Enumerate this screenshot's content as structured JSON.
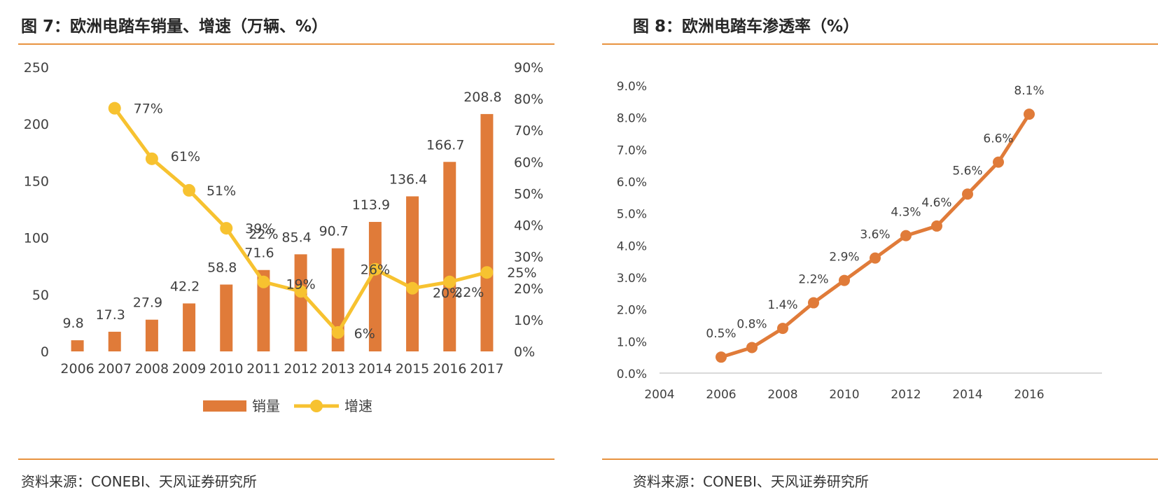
{
  "colors": {
    "bar": "#e07b39",
    "growth_line": "#f7c230",
    "penetration_line": "#e07b39",
    "rule": "#e8933f",
    "text": "#404040"
  },
  "left_panel": {
    "title": "图 7：欧洲电踏车销量、增速（万辆、%）",
    "source": "资料来源：CONEBI、天风证券研究所"
  },
  "right_panel": {
    "title": "图 8：欧洲电踏车渗透率（%）",
    "source": "资料来源：CONEBI、天风证券研究所"
  },
  "chart_data": [
    {
      "type": "bar",
      "categories": [
        "2006",
        "2007",
        "2008",
        "2009",
        "2010",
        "2011",
        "2012",
        "2013",
        "2014",
        "2015",
        "2016",
        "2017"
      ],
      "series": [
        {
          "name": "销量",
          "type": "bar",
          "axis": "left",
          "values": [
            9.8,
            17.3,
            27.9,
            42.2,
            58.8,
            71.6,
            85.4,
            90.7,
            113.9,
            136.4,
            166.7,
            208.8
          ],
          "labels": [
            "9.8",
            "17.3",
            "27.9",
            "42.2",
            "58.8",
            "71.6",
            "85.4",
            "90.7",
            "113.9",
            "136.4",
            "166.7",
            "208.8"
          ]
        },
        {
          "name": "增速",
          "type": "line",
          "axis": "right",
          "values": [
            null,
            77,
            61,
            51,
            39,
            22,
            19,
            6,
            26,
            20,
            22,
            25
          ],
          "labels": [
            "",
            "77%",
            "61%",
            "51%",
            "39%",
            "22%",
            "19%",
            "6%",
            "26%",
            "20%",
            "22%",
            "25%"
          ]
        }
      ],
      "ylim_left": [
        0,
        250
      ],
      "yticks_left": [
        "0",
        "50",
        "100",
        "150",
        "200",
        "250"
      ],
      "ylim_right": [
        0,
        90
      ],
      "yticks_right": [
        "0%",
        "10%",
        "20%",
        "30%",
        "40%",
        "50%",
        "60%",
        "70%",
        "80%",
        "90%"
      ],
      "legend": [
        "销量",
        "增速"
      ],
      "legend_position": "bottom",
      "grid": false
    },
    {
      "type": "line",
      "series": [
        {
          "name": "渗透率",
          "x": [
            2006,
            2007,
            2008,
            2009,
            2010,
            2011,
            2012,
            2013,
            2014,
            2015,
            2016
          ],
          "values": [
            0.5,
            0.8,
            1.4,
            2.2,
            2.9,
            3.6,
            4.3,
            4.6,
            5.6,
            6.6,
            8.1
          ],
          "labels": [
            "0.5%",
            "0.8%",
            "1.4%",
            "2.2%",
            "2.9%",
            "3.6%",
            "4.3%",
            "4.6%",
            "5.6%",
            "6.6%",
            "8.1%"
          ]
        }
      ],
      "xlim": [
        2004,
        2017
      ],
      "xticks": [
        "2004",
        "2006",
        "2008",
        "2010",
        "2012",
        "2014",
        "2016"
      ],
      "ylim": [
        0,
        9
      ],
      "yticks": [
        "0.0%",
        "1.0%",
        "2.0%",
        "3.0%",
        "4.0%",
        "5.0%",
        "6.0%",
        "7.0%",
        "8.0%",
        "9.0%"
      ],
      "grid": false
    }
  ]
}
